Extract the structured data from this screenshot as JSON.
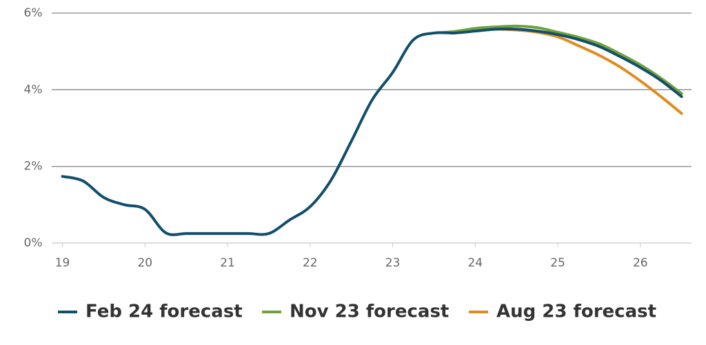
{
  "chart_data": {
    "type": "line",
    "x": [
      19,
      19.25,
      19.5,
      19.75,
      20,
      20.25,
      20.5,
      20.75,
      21,
      21.25,
      21.5,
      21.75,
      22,
      22.25,
      22.5,
      22.75,
      23,
      23.25,
      23.5,
      23.75,
      24,
      24.25,
      24.5,
      24.75,
      25,
      25.25,
      25.5,
      25.75,
      26,
      26.25,
      26.5
    ],
    "series": [
      {
        "name": "Feb 24 forecast",
        "color": "#124e6b",
        "values": [
          1.74,
          1.62,
          1.19,
          1.0,
          0.88,
          0.27,
          0.25,
          0.25,
          0.25,
          0.25,
          0.25,
          0.6,
          0.95,
          1.63,
          2.66,
          3.73,
          4.45,
          5.3,
          5.48,
          5.48,
          5.53,
          5.58,
          5.58,
          5.53,
          5.44,
          5.31,
          5.13,
          4.87,
          4.58,
          4.24,
          3.82
        ]
      },
      {
        "name": "Nov 23 forecast",
        "color": "#6ea23a",
        "values": [
          null,
          null,
          null,
          null,
          null,
          null,
          null,
          null,
          null,
          null,
          null,
          null,
          null,
          null,
          null,
          null,
          null,
          null,
          5.48,
          5.52,
          5.6,
          5.64,
          5.66,
          5.62,
          5.5,
          5.37,
          5.2,
          4.94,
          4.65,
          4.3,
          3.9
        ]
      },
      {
        "name": "Aug 23 forecast",
        "color": "#e08b1f",
        "values": [
          null,
          null,
          null,
          null,
          null,
          null,
          null,
          null,
          null,
          null,
          null,
          null,
          null,
          null,
          null,
          null,
          null,
          null,
          null,
          null,
          null,
          5.58,
          5.56,
          5.5,
          5.38,
          5.15,
          4.9,
          4.6,
          4.23,
          3.82,
          3.38
        ]
      }
    ],
    "xlim": [
      18.87,
      26.62
    ],
    "xticks": [
      19,
      20,
      21,
      22,
      23,
      24,
      25,
      26
    ],
    "ylim": [
      0,
      6
    ],
    "yticks": [
      {
        "value": 0,
        "label": "0%"
      },
      {
        "value": 2,
        "label": "2%"
      },
      {
        "value": 4,
        "label": "4%"
      },
      {
        "value": 6,
        "label": "6%"
      }
    ],
    "grid": true,
    "legend": "bottom"
  }
}
